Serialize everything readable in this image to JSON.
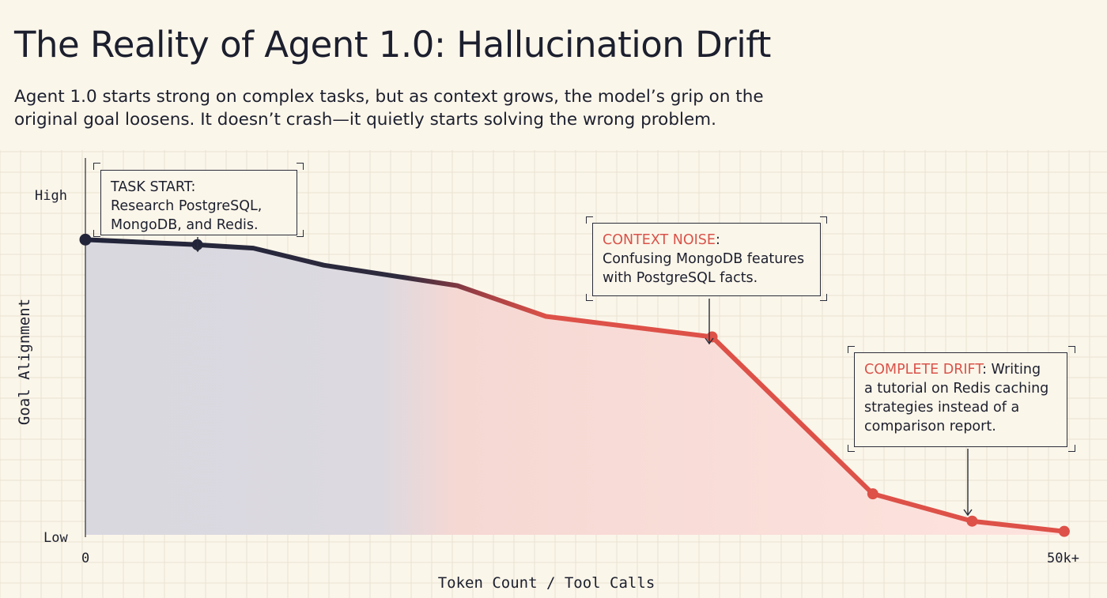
{
  "title": "The Reality of Agent 1.0: Hallucination Drift",
  "subtitle_lines": [
    "Agent 1.0 starts strong on complex tasks, but as context grows, the model’s grip on the",
    "original goal loosens. It doesn’t crash—it quietly starts solving the wrong problem."
  ],
  "colors": {
    "background": "#fbf6ea",
    "grid": "#e9e2d1",
    "dark_line": "#22253a",
    "red_line": "#dd5148",
    "dark_fill": "#d9d8df",
    "red_fill": "#fbdcd6"
  },
  "chart_data": {
    "type": "area",
    "xlabel": "Token Count / Tool Calls",
    "ylabel": "Goal Alignment",
    "x_tick_labels": [
      "0",
      "50k+"
    ],
    "y_tick_labels": [
      "Low",
      "High"
    ],
    "xlim": [
      0,
      50
    ],
    "ylim": [
      0,
      1
    ],
    "grid": true,
    "points": [
      {
        "x": 0,
        "y": 0.865,
        "marker": true
      },
      {
        "x": 6.2,
        "y": 0.85,
        "marker": true
      },
      {
        "x": 9.3,
        "y": 0.84,
        "marker": false
      },
      {
        "x": 13.2,
        "y": 0.79,
        "marker": false
      },
      {
        "x": 20.6,
        "y": 0.73,
        "marker": false
      },
      {
        "x": 25.5,
        "y": 0.64,
        "marker": false
      },
      {
        "x": 34.7,
        "y": 0.58,
        "marker": true
      },
      {
        "x": 43.6,
        "y": 0.12,
        "marker": true
      },
      {
        "x": 49.1,
        "y": 0.04,
        "marker": true
      },
      {
        "x": 54.2,
        "y": 0.01,
        "marker": true
      }
    ],
    "annotations": [
      {
        "label": "TASK START:",
        "text": [
          "Research PostgreSQL,",
          "MongoDB, and Redis."
        ]
      },
      {
        "label": "CONTEXT NOISE",
        "text": [
          ":",
          "Confusing MongoDB features",
          "with PostgreSQL facts."
        ]
      },
      {
        "label": "COMPLETE DRIFT",
        "text": [
          ": Writing",
          "a tutorial on Redis caching",
          "strategies instead of a",
          "comparison report."
        ]
      }
    ]
  }
}
